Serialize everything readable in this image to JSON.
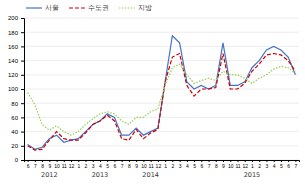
{
  "chart_data": {
    "type": "line",
    "categories": [
      "6",
      "7",
      "8",
      "9",
      "10",
      "11",
      "12",
      "1",
      "2",
      "3",
      "4",
      "5",
      "6",
      "7",
      "8",
      "9",
      "10",
      "11",
      "12",
      "1",
      "2",
      "3",
      "4",
      "5",
      "6",
      "7",
      "8",
      "9",
      "10",
      "11",
      "12",
      "1",
      "2",
      "3",
      "4",
      "5",
      "6",
      "7"
    ],
    "series": [
      {
        "name": "서울",
        "color": "#4472C4",
        "line_style": "solid",
        "values": [
          22,
          15,
          18,
          30,
          35,
          25,
          28,
          30,
          40,
          50,
          55,
          65,
          60,
          35,
          35,
          45,
          35,
          40,
          45,
          110,
          175,
          165,
          110,
          100,
          105,
          100,
          105,
          165,
          105,
          105,
          110,
          130,
          140,
          155,
          160,
          155,
          145,
          120
        ]
      },
      {
        "name": "수도권",
        "color": "#CC0000",
        "line_style": "dashed",
        "values": [
          20,
          14,
          15,
          28,
          40,
          30,
          28,
          28,
          38,
          50,
          55,
          63,
          55,
          30,
          28,
          43,
          30,
          38,
          43,
          110,
          145,
          150,
          105,
          90,
          100,
          100,
          102,
          150,
          100,
          100,
          108,
          125,
          135,
          148,
          150,
          148,
          140,
          125
        ]
      },
      {
        "name": "지방",
        "color": "#92D050",
        "line_style": "dotted",
        "values": [
          95,
          78,
          50,
          42,
          48,
          40,
          35,
          40,
          50,
          58,
          65,
          68,
          65,
          55,
          50,
          60,
          60,
          68,
          72,
          105,
          130,
          135,
          120,
          108,
          112,
          115,
          112,
          125,
          120,
          120,
          115,
          108,
          115,
          120,
          128,
          132,
          130,
          122
        ]
      }
    ],
    "annotations": [
      {
        "text": "2012",
        "x": 3
      },
      {
        "text": "2013",
        "x": 10
      },
      {
        "text": "2014",
        "x": 17
      },
      {
        "text": "2015",
        "x": 31
      }
    ],
    "ylim": [
      0,
      200
    ],
    "yticks": [
      0,
      20,
      40,
      60,
      80,
      100,
      120,
      140,
      160,
      180,
      200
    ],
    "grid": true,
    "legend": "upper left"
  }
}
